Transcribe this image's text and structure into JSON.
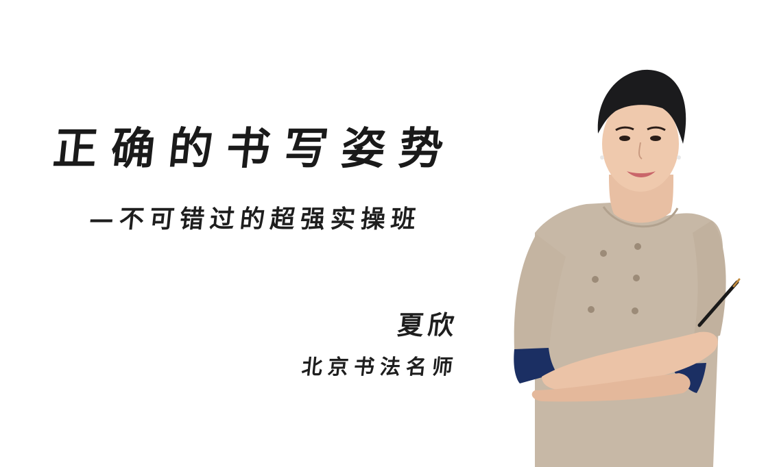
{
  "title": "正确的书写姿势",
  "subtitle": "—不可错过的超强实操班",
  "teacher": {
    "name": "夏欣",
    "title": "北京书法名师"
  },
  "colors": {
    "background": "#ffffff",
    "text": "#1e1e1e",
    "dress": "#c7b8a6",
    "cuff": "#1b2f63",
    "hair": "#1b1b1d",
    "skin": "#efc9ad"
  },
  "portrait": {
    "subject": "smiling teacher in beige dress with arms crossed holding a pen"
  }
}
